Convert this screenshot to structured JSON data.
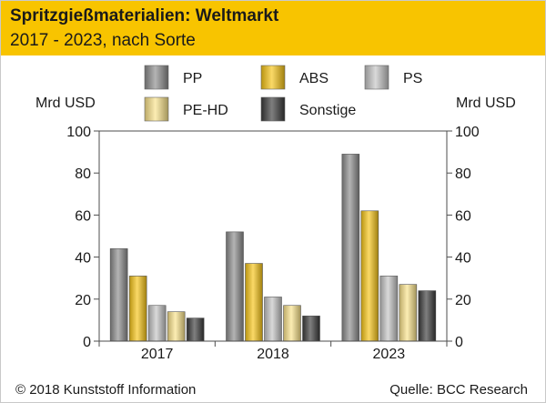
{
  "header": {
    "title": "Spritzgießmaterialien: Weltmarkt",
    "subtitle": "2017 - 2023, nach Sorte"
  },
  "footer": {
    "copyright": "© 2018 Kunststoff Information",
    "source": "Quelle: BCC Research"
  },
  "colors": {
    "header_bg": "#f8c400",
    "PP": "#8c8c8c",
    "ABS": "#f7c515",
    "PS": "#c4c4c4",
    "PE-HD": "#fbe38a",
    "Sonstige": "#3a3a3a"
  },
  "chart_data": {
    "type": "bar",
    "title": "Spritzgießmaterialien: Weltmarkt",
    "subtitle": "2017 - 2023, nach Sorte",
    "ylabel_left": "Mrd USD",
    "ylabel_right": "Mrd USD",
    "ylim": [
      0,
      100
    ],
    "yticks": [
      0,
      20,
      40,
      60,
      80,
      100
    ],
    "categories": [
      "2017",
      "2018",
      "2023"
    ],
    "series": [
      {
        "name": "PP",
        "values": [
          44,
          52,
          89
        ]
      },
      {
        "name": "ABS",
        "values": [
          31,
          37,
          62
        ]
      },
      {
        "name": "PS",
        "values": [
          17,
          21,
          31
        ]
      },
      {
        "name": "PE-HD",
        "values": [
          14,
          17,
          27
        ]
      },
      {
        "name": "Sonstige",
        "values": [
          11,
          12,
          24
        ]
      }
    ],
    "legend_position": "top",
    "grid": false
  }
}
